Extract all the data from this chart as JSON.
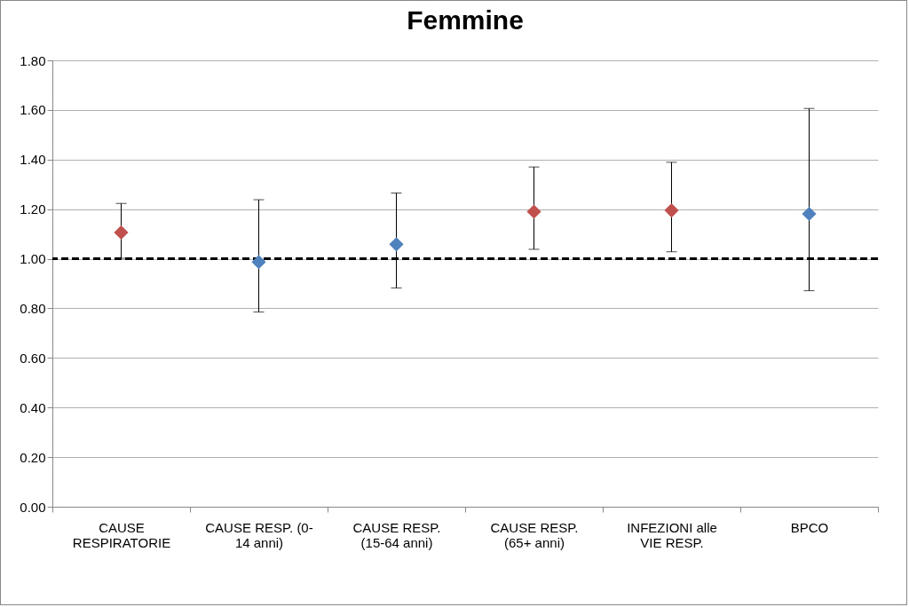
{
  "chart_data": {
    "type": "scatter",
    "title": "Femmine",
    "categories": [
      "CAUSE RESPIRATORIE",
      "CAUSE RESP. (0-14 anni)",
      "CAUSE RESP. (15-64 anni)",
      "CAUSE RESP. (65+ anni)",
      "INFEZIONI alle VIE RESP.",
      "BPCO"
    ],
    "values": [
      1.106,
      0.987,
      1.058,
      1.19,
      1.195,
      1.181
    ],
    "colors": [
      "#c0504d",
      "#4f81bd",
      "#4f81bd",
      "#c0504d",
      "#c0504d",
      "#4f81bd"
    ],
    "errors": [
      [
        1.002,
        1.223
      ],
      [
        0.785,
        1.238
      ],
      [
        0.882,
        1.265
      ],
      [
        1.038,
        1.37
      ],
      [
        1.028,
        1.389
      ],
      [
        0.871,
        1.606
      ]
    ],
    "marker": "diamond",
    "ylim": [
      0,
      1.8
    ],
    "yticks": [
      {
        "value": 0,
        "label": "0.00"
      },
      {
        "value": 0.2,
        "label": "0.20"
      },
      {
        "value": 0.4,
        "label": "0.40"
      },
      {
        "value": 0.6,
        "label": "0.60"
      },
      {
        "value": 0.8,
        "label": "0.80"
      },
      {
        "value": 1,
        "label": "1.00"
      },
      {
        "value": 1.2,
        "label": "1.20"
      },
      {
        "value": 1.4,
        "label": "1.40"
      },
      {
        "value": 1.6,
        "label": "1.60"
      },
      {
        "value": 1.8,
        "label": "1.80"
      }
    ],
    "grid": "y",
    "ref_lines": [
      {
        "axis": "y",
        "value": 1,
        "color": "#000000",
        "line_style": "dashed"
      }
    ]
  }
}
